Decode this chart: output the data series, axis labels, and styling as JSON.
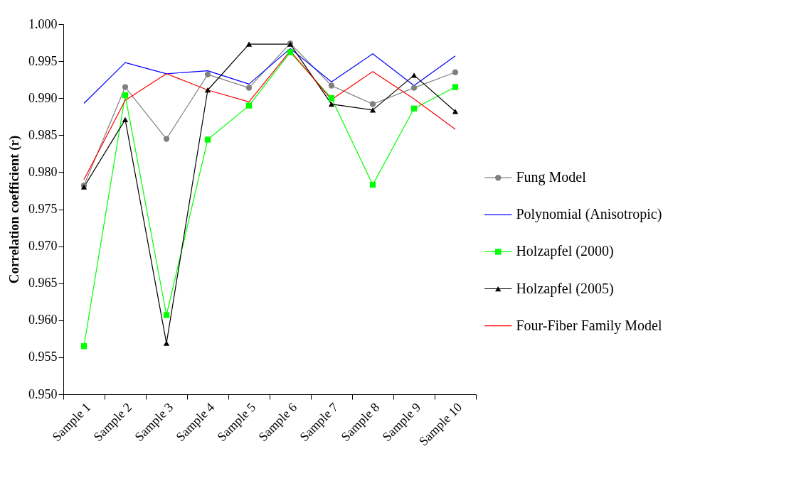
{
  "chart_data": {
    "type": "line",
    "ylabel": "Correlation coefficient (r)",
    "categories": [
      "Sample 1",
      "Sample 2",
      "Sample 3",
      "Sample 4",
      "Sample 5",
      "Sample 6",
      "Sample 7",
      "Sample 8",
      "Sample 9",
      "Sample 10"
    ],
    "ylim": [
      0.95,
      1.0
    ],
    "yticks": [
      {
        "value": 0.95,
        "label": "0.950"
      },
      {
        "value": 0.955,
        "label": "0.955"
      },
      {
        "value": 0.96,
        "label": "0.960"
      },
      {
        "value": 0.965,
        "label": "0.965"
      },
      {
        "value": 0.97,
        "label": "0.970"
      },
      {
        "value": 0.975,
        "label": "0.975"
      },
      {
        "value": 0.98,
        "label": "0.980"
      },
      {
        "value": 0.985,
        "label": "0.985"
      },
      {
        "value": 0.99,
        "label": "0.990"
      },
      {
        "value": 0.995,
        "label": "0.995"
      },
      {
        "value": 1.0,
        "label": "1.000"
      }
    ],
    "grid": false,
    "legend": "right",
    "series": [
      {
        "name": "Fung Model",
        "color": "#808080",
        "marker": "circle",
        "values": [
          0.9782,
          0.9915,
          0.9845,
          0.9932,
          0.9914,
          0.9974,
          0.9917,
          0.9892,
          0.9914,
          0.9935
        ]
      },
      {
        "name": "Polynomial (Anisotropic)",
        "color": "#0000ff",
        "marker": "none",
        "values": [
          0.9893,
          0.9948,
          0.9933,
          0.9937,
          0.9919,
          0.9967,
          0.9922,
          0.996,
          0.9917,
          0.9957
        ]
      },
      {
        "name": "Holzapfel (2000)",
        "color": "#00ff00",
        "marker": "square",
        "values": [
          0.9565,
          0.9904,
          0.9607,
          0.9844,
          0.989,
          0.9962,
          0.99,
          0.9783,
          0.9886,
          0.9915
        ]
      },
      {
        "name": "Holzapfel (2005)",
        "color": "#000000",
        "marker": "triangle",
        "values": [
          0.978,
          0.9871,
          0.9569,
          0.9911,
          0.9973,
          0.9973,
          0.9892,
          0.9884,
          0.9931,
          0.9882
        ]
      },
      {
        "name": "Four-Fiber Family Model",
        "color": "#ff0000",
        "marker": "none",
        "values": [
          0.979,
          0.9897,
          0.9933,
          0.9911,
          0.9895,
          0.9964,
          0.9898,
          0.9936,
          0.9899,
          0.9858
        ]
      }
    ]
  }
}
